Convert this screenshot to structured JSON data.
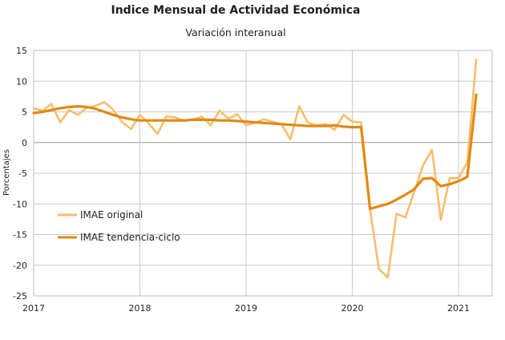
{
  "chart_data": {
    "type": "line",
    "title": "Indice Mensual de  Actividad Económica",
    "subtitle": "Variación interanual",
    "ylabel": "Porcentajes",
    "xlabel": "",
    "ylim": [
      -25,
      15
    ],
    "yticks": [
      15,
      10,
      5,
      0,
      -5,
      -10,
      -15,
      -20,
      -25
    ],
    "x_tick_labels": [
      "2017",
      "2018",
      "2019",
      "2020",
      "2021"
    ],
    "x_start": "2017-01",
    "grid": true,
    "legend_position": "lower-left",
    "colors": {
      "original": "#f7bd6b",
      "trend": "#e08a12"
    },
    "series": [
      {
        "name": "IMAE original",
        "color": "#f7bd6b",
        "values": [
          5.6,
          5.2,
          6.3,
          3.3,
          5.3,
          4.5,
          5.7,
          6.0,
          6.6,
          5.3,
          3.3,
          2.2,
          4.5,
          3.1,
          1.4,
          4.3,
          4.1,
          3.5,
          3.8,
          4.2,
          2.8,
          5.2,
          3.9,
          4.6,
          2.8,
          3.2,
          3.8,
          3.4,
          3.0,
          0.5,
          5.9,
          3.2,
          2.8,
          3.0,
          2.1,
          4.5,
          3.4,
          3.3,
          -10.8,
          -20.6,
          -22.0,
          -11.6,
          -12.2,
          -8.0,
          -3.7,
          -1.2,
          -12.6,
          -5.8,
          -5.8,
          -3.2,
          13.5
        ]
      },
      {
        "name": "IMAE tendencia-ciclo",
        "color": "#e08a12",
        "values": [
          4.8,
          5.0,
          5.3,
          5.6,
          5.8,
          5.9,
          5.8,
          5.5,
          5.0,
          4.5,
          4.1,
          3.8,
          3.6,
          3.6,
          3.6,
          3.6,
          3.6,
          3.6,
          3.7,
          3.7,
          3.7,
          3.6,
          3.6,
          3.5,
          3.4,
          3.3,
          3.2,
          3.1,
          3.0,
          2.9,
          2.8,
          2.7,
          2.7,
          2.7,
          2.8,
          2.6,
          2.5,
          2.5,
          -10.8,
          -10.4,
          -10.0,
          -9.3,
          -8.5,
          -7.6,
          -5.9,
          -5.8,
          -7.1,
          -6.8,
          -6.3,
          -5.6,
          7.8
        ]
      }
    ]
  }
}
